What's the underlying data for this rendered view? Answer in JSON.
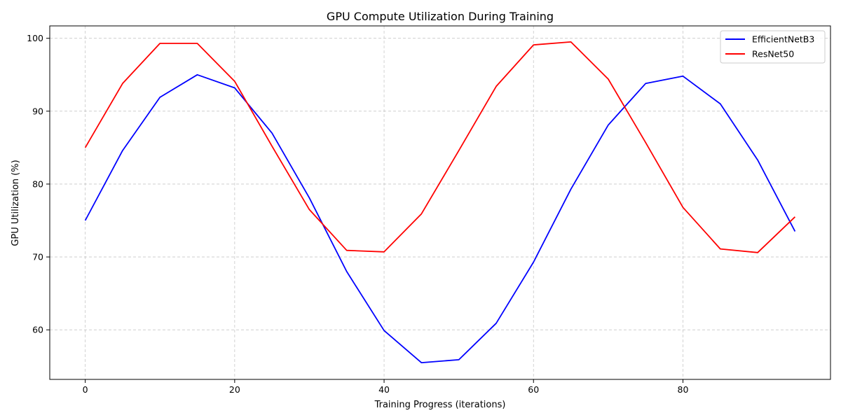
{
  "chart_data": {
    "type": "line",
    "title": "GPU Compute Utilization During Training",
    "xlabel": "Training Progress (iterations)",
    "ylabel": "GPU Utilization (%)",
    "xlim": [
      -4.75,
      99.75
    ],
    "ylim": [
      53.2,
      101.7
    ],
    "xticks": [
      0,
      20,
      40,
      60,
      80
    ],
    "yticks": [
      60,
      70,
      80,
      90,
      100
    ],
    "grid": true,
    "legend_position": "top-right",
    "x": [
      0,
      5,
      10,
      15,
      20,
      25,
      30,
      35,
      40,
      45,
      50,
      55,
      60,
      65,
      70,
      75,
      80,
      85,
      90,
      95
    ],
    "series": [
      {
        "name": "EfficientNetB3",
        "color": "#0000ff",
        "values": [
          75.0,
          84.6,
          91.9,
          95.0,
          93.2,
          87.0,
          78.1,
          68.0,
          59.9,
          55.5,
          55.9,
          60.9,
          69.3,
          79.3,
          88.1,
          93.8,
          94.8,
          91.0,
          83.3,
          73.5
        ]
      },
      {
        "name": "ResNet50",
        "color": "#ff0000",
        "values": [
          85.0,
          93.8,
          99.3,
          99.3,
          94.1,
          85.2,
          76.5,
          70.9,
          70.7,
          75.9,
          84.6,
          93.4,
          99.1,
          99.5,
          94.4,
          85.7,
          76.8,
          71.1,
          70.6,
          75.5
        ]
      }
    ]
  }
}
